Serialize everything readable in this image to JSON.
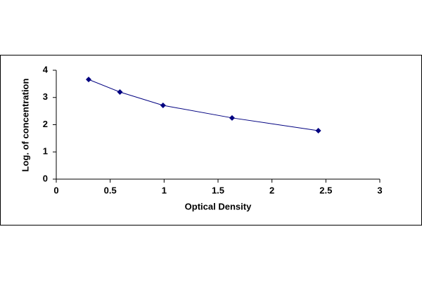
{
  "chart_data": {
    "type": "scatter",
    "line": true,
    "x_label": "Optical Density",
    "y_label": "Log. of concentration",
    "series": [
      {
        "color": "#000080",
        "x": [
          0.3,
          0.59,
          0.99,
          1.63,
          2.43
        ],
        "values": [
          3.66,
          3.2,
          2.71,
          2.25,
          1.78
        ]
      }
    ],
    "xlim": [
      0,
      3
    ],
    "xticks": [
      0,
      0.5,
      1,
      1.5,
      2,
      2.5,
      3
    ],
    "ylim": [
      0,
      4
    ],
    "yticks": [
      0,
      1,
      2,
      3,
      4
    ],
    "grid": false
  }
}
